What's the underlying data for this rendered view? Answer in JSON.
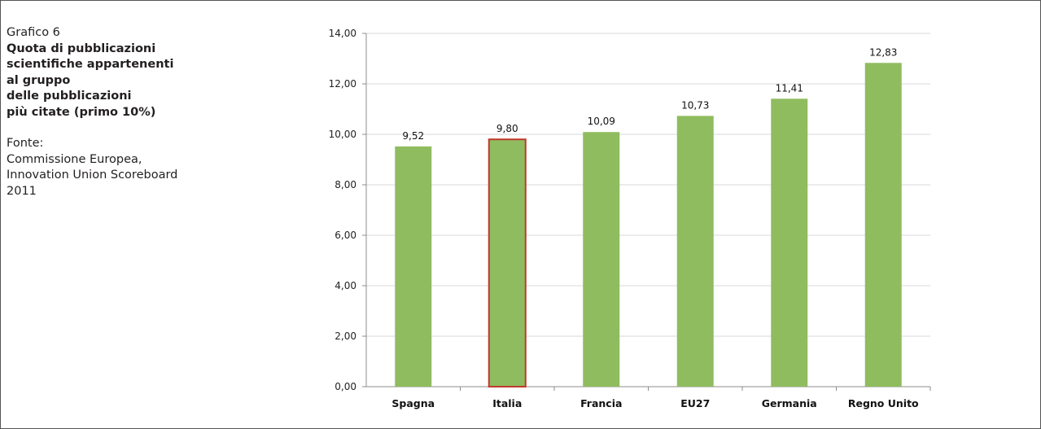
{
  "caption": {
    "label": "Grafico 6",
    "title": "Quota di pubblicazioni\nscientifiche appartenenti\nal gruppo\ndelle pubblicazioni\npiù citate (primo 10%)",
    "source": "Fonte:\nCommissione Europea,\nInnovation Union Scoreboard\n2011"
  },
  "colors": {
    "bar": "#8fbc5f",
    "highlight_border": "#c0392b",
    "grid": "#d9d9d9",
    "axis": "#8c8c8c"
  },
  "chart_data": {
    "type": "bar",
    "categories": [
      "Spagna",
      "Italia",
      "Francia",
      "EU27",
      "Germania",
      "Regno Unito"
    ],
    "values": [
      9.52,
      9.8,
      10.09,
      10.73,
      11.41,
      12.83
    ],
    "value_labels": [
      "9,52",
      "9,80",
      "10,09",
      "10,73",
      "11,41",
      "12,83"
    ],
    "highlighted_category": "Italia",
    "ylim": [
      0,
      14
    ],
    "yticks": [
      0,
      2,
      4,
      6,
      8,
      10,
      12,
      14
    ],
    "ytick_labels": [
      "0,00",
      "2,00",
      "4,00",
      "6,00",
      "8,00",
      "10,00",
      "12,00",
      "14,00"
    ],
    "grid": true,
    "legend": "none",
    "xlabel": "",
    "ylabel": ""
  }
}
